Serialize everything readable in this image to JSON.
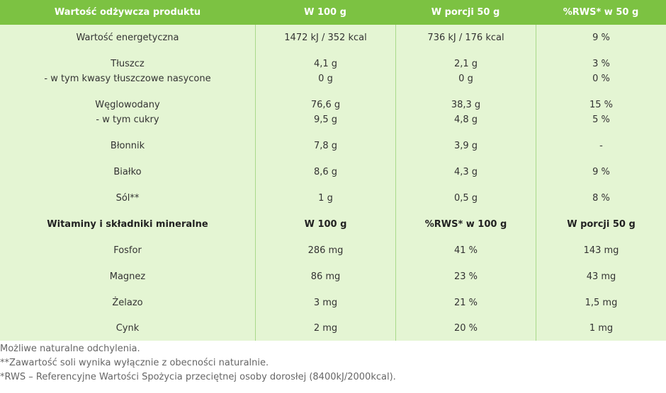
{
  "header": {
    "col1": "Wartość odżywcza produktu",
    "col2": "W 100 g",
    "col3": "W porcji 50 g",
    "col4": "%RWS* w 50 g"
  },
  "nutrition": [
    {
      "lines": [
        "Wartość energetyczna"
      ],
      "w100": [
        "1472 kJ / 352 kcal"
      ],
      "porcja": [
        "736 kJ / 176 kcal"
      ],
      "rws": [
        "9 %"
      ]
    },
    {
      "lines": [
        "Tłuszcz",
        "- w tym kwasy tłuszczowe nasycone"
      ],
      "w100": [
        "4,1 g",
        "0 g"
      ],
      "porcja": [
        "2,1 g",
        "0 g"
      ],
      "rws": [
        "3 %",
        "0 %"
      ]
    },
    {
      "lines": [
        "Węglowodany",
        "- w tym cukry"
      ],
      "w100": [
        "76,6 g",
        "9,5 g"
      ],
      "porcja": [
        "38,3 g",
        "4,8 g"
      ],
      "rws": [
        "15 %",
        "5 %"
      ]
    },
    {
      "lines": [
        "Błonnik"
      ],
      "w100": [
        "7,8 g"
      ],
      "porcja": [
        "3,9 g"
      ],
      "rws": [
        "-"
      ]
    },
    {
      "lines": [
        "Białko"
      ],
      "w100": [
        "8,6 g"
      ],
      "porcja": [
        "4,3 g"
      ],
      "rws": [
        "9 %"
      ]
    },
    {
      "lines": [
        "Sól**"
      ],
      "w100": [
        "1 g"
      ],
      "porcja": [
        "0,5 g"
      ],
      "rws": [
        "8 %"
      ]
    }
  ],
  "vitamins_header": {
    "col1": "Witaminy i składniki mineralne",
    "col2": "W 100 g",
    "col3": "%RWS* w 100 g",
    "col4": "W porcji 50 g"
  },
  "vitamins": [
    {
      "name": "Fosfor",
      "w100": "286 mg",
      "rws": "41 %",
      "porcja": "143 mg"
    },
    {
      "name": "Magnez",
      "w100": "86 mg",
      "rws": "23 %",
      "porcja": "43 mg"
    },
    {
      "name": "Żelazo",
      "w100": "3 mg",
      "rws": "21 %",
      "porcja": "1,5 mg"
    },
    {
      "name": "Cynk",
      "w100": "2 mg",
      "rws": "20 %",
      "porcja": "1 mg"
    }
  ],
  "footnotes": [
    "Możliwe naturalne odchylenia.",
    "**Zawartość soli wynika wyłącznie z obecności naturalnie.",
    "*RWS – Referencyjne Wartości Spożycia przeciętnej osoby dorosłej (8400kJ/2000kcal)."
  ]
}
